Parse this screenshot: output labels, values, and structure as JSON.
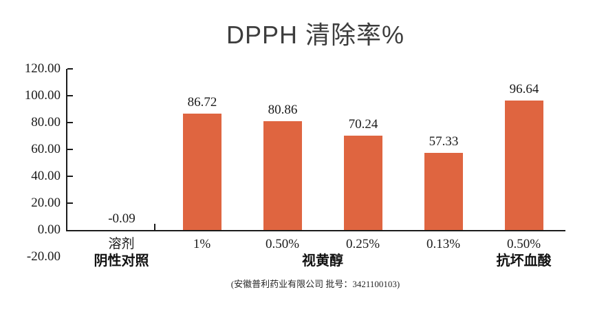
{
  "title": "DPPH 清除率%",
  "footer": "(安徽普利药业有限公司 批号：3421100103)",
  "chart_data": {
    "type": "bar",
    "title": "DPPH 清除率%",
    "categories": [
      "溶剂",
      "1%",
      "0.50%",
      "0.25%",
      "0.13%",
      "0.50%"
    ],
    "values": [
      -0.09,
      86.72,
      80.86,
      70.24,
      57.33,
      96.64
    ],
    "data_labels": [
      "-0.09",
      "86.72",
      "80.86",
      "70.24",
      "57.33",
      "96.64"
    ],
    "group_labels": [
      {
        "label": "阴性对照",
        "start": 0,
        "end": 0
      },
      {
        "label": "视黄醇",
        "start": 1,
        "end": 4
      },
      {
        "label": "抗坏血酸",
        "start": 5,
        "end": 5
      }
    ],
    "y_ticks": [
      "120.00",
      "100.00",
      "80.00",
      "60.00",
      "40.00",
      "20.00",
      "0.00",
      "-20.00"
    ],
    "ylim": [
      -20,
      120
    ],
    "ylabel": "",
    "xlabel": "",
    "grid": false,
    "legend": false,
    "bar_color": "#DF6540",
    "axis_color": "#1a1a1a",
    "background_color": "#ffffff"
  }
}
